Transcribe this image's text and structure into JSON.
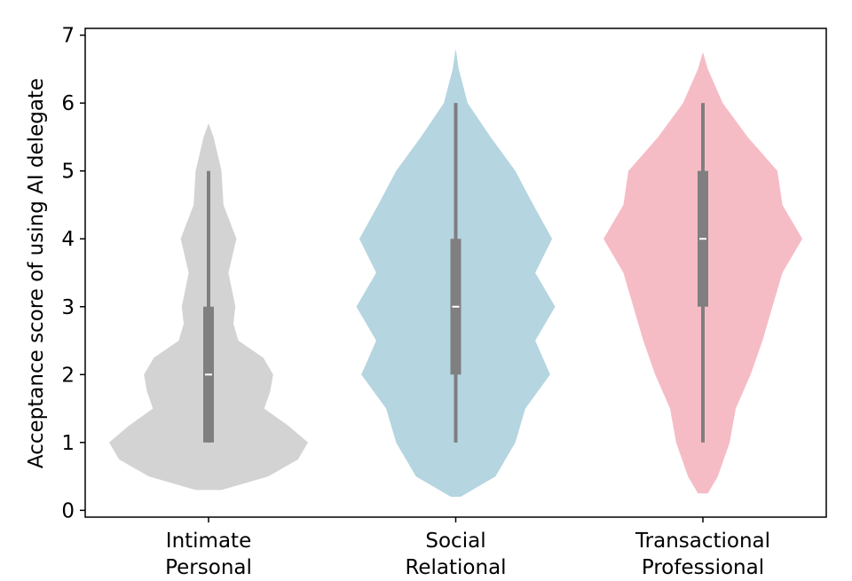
{
  "chart_data": {
    "type": "violin",
    "ylabel": "Acceptance score of using AI delegate",
    "categories": [
      [
        "Intimate",
        "Personal"
      ],
      [
        "Social",
        "Relational"
      ],
      [
        "Transactional",
        "Professional"
      ]
    ],
    "ylim": [
      -0.1,
      7.1
    ],
    "yticks": [
      0,
      1,
      2,
      3,
      4,
      5,
      6,
      7
    ],
    "box_color": "#7f7f7f",
    "violins": [
      {
        "color": "#d3d3d3",
        "density_y": [
          0.3,
          0.5,
          0.75,
          1.0,
          1.25,
          1.5,
          1.75,
          2.0,
          2.25,
          2.5,
          2.75,
          3.0,
          3.5,
          4.0,
          4.5,
          5.0,
          5.5,
          5.7
        ],
        "density_width": [
          0.13,
          0.6,
          0.9,
          1.0,
          0.8,
          0.56,
          0.62,
          0.65,
          0.55,
          0.3,
          0.25,
          0.27,
          0.2,
          0.28,
          0.15,
          0.13,
          0.05,
          0
        ],
        "min": 1,
        "q1": 1,
        "median": 2,
        "q3": 3,
        "max": 5
      },
      {
        "color": "#b5d5e0",
        "density_y": [
          0.2,
          0.5,
          1.0,
          1.5,
          2.0,
          2.5,
          3.0,
          3.5,
          4.0,
          4.5,
          5.0,
          5.5,
          6.0,
          6.5,
          6.8
        ],
        "density_width": [
          0.05,
          0.4,
          0.6,
          0.7,
          0.95,
          0.8,
          1.0,
          0.8,
          0.97,
          0.78,
          0.6,
          0.35,
          0.12,
          0.03,
          0
        ],
        "min": 1,
        "q1": 2,
        "median": 3,
        "q3": 4,
        "max": 6
      },
      {
        "color": "#f6bcc6",
        "density_y": [
          0.25,
          0.5,
          1.0,
          1.5,
          2.0,
          2.5,
          3.0,
          3.5,
          4.0,
          4.5,
          5.0,
          5.5,
          6.0,
          6.5,
          6.75
        ],
        "density_width": [
          0.05,
          0.15,
          0.27,
          0.33,
          0.48,
          0.6,
          0.7,
          0.8,
          1.0,
          0.8,
          0.75,
          0.45,
          0.2,
          0.05,
          0
        ],
        "min": 1,
        "q1": 3,
        "median": 4,
        "q3": 5,
        "max": 6
      }
    ]
  }
}
